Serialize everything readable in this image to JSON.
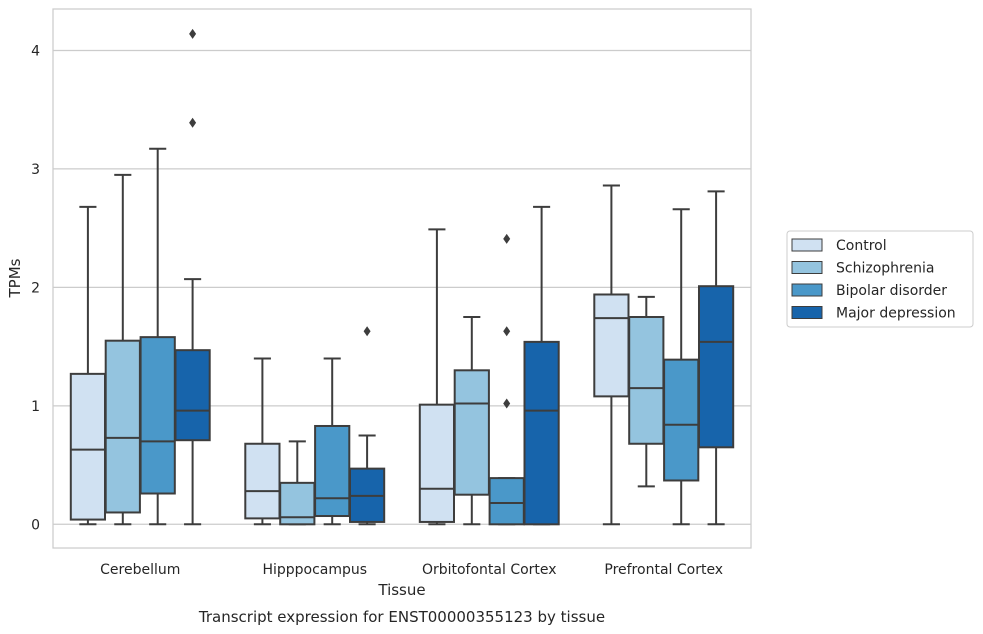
{
  "chart_data": {
    "type": "box",
    "xlabel": "Tissue",
    "ylabel": "TPMs",
    "caption": "Transcript expression for ENST00000355123 by tissue",
    "categories": [
      "Cerebellum",
      "Hipppocampus",
      "Orbitofontal Cortex",
      "Prefrontal Cortex"
    ],
    "ylim": [
      -0.2,
      4.35
    ],
    "yticks": [
      0,
      1,
      2,
      3,
      4
    ],
    "grid": "horizontal",
    "legend_position": "right",
    "series": [
      {
        "name": "Control",
        "color": "#d0e1f2",
        "boxes": [
          {
            "min": 0.0,
            "q1": 0.04,
            "median": 0.63,
            "q3": 1.27,
            "max": 2.68,
            "outliers": []
          },
          {
            "min": 0.0,
            "q1": 0.05,
            "median": 0.28,
            "q3": 0.68,
            "max": 1.4,
            "outliers": []
          },
          {
            "min": 0.0,
            "q1": 0.02,
            "median": 0.3,
            "q3": 1.01,
            "max": 2.49,
            "outliers": []
          },
          {
            "min": 0.0,
            "q1": 1.08,
            "median": 1.74,
            "q3": 1.94,
            "max": 2.86,
            "outliers": []
          }
        ]
      },
      {
        "name": "Schizophrenia",
        "color": "#94c4df",
        "boxes": [
          {
            "min": 0.0,
            "q1": 0.1,
            "median": 0.73,
            "q3": 1.55,
            "max": 2.95,
            "outliers": []
          },
          {
            "min": 0.0,
            "q1": 0.0,
            "median": 0.06,
            "q3": 0.35,
            "max": 0.7,
            "outliers": []
          },
          {
            "min": 0.0,
            "q1": 0.25,
            "median": 1.02,
            "q3": 1.3,
            "max": 1.75,
            "outliers": []
          },
          {
            "min": 0.32,
            "q1": 0.68,
            "median": 1.15,
            "q3": 1.75,
            "max": 1.92,
            "outliers": []
          }
        ]
      },
      {
        "name": "Bipolar disorder",
        "color": "#4a98c9",
        "boxes": [
          {
            "min": 0.0,
            "q1": 0.26,
            "median": 0.7,
            "q3": 1.58,
            "max": 3.17,
            "outliers": []
          },
          {
            "min": 0.0,
            "q1": 0.07,
            "median": 0.22,
            "q3": 0.83,
            "max": 1.4,
            "outliers": []
          },
          {
            "min": 0.0,
            "q1": 0.0,
            "median": 0.18,
            "q3": 0.39,
            "max": 0.39,
            "outliers": [
              1.02,
              1.63,
              2.41
            ]
          },
          {
            "min": 0.0,
            "q1": 0.37,
            "median": 0.84,
            "q3": 1.39,
            "max": 2.66,
            "outliers": []
          }
        ]
      },
      {
        "name": "Major depression",
        "color": "#1764ab",
        "boxes": [
          {
            "min": 0.0,
            "q1": 0.71,
            "median": 0.96,
            "q3": 1.47,
            "max": 2.07,
            "outliers": [
              3.39,
              4.14
            ]
          },
          {
            "min": 0.0,
            "q1": 0.02,
            "median": 0.24,
            "q3": 0.47,
            "max": 0.75,
            "outliers": [
              1.63
            ]
          },
          {
            "min": 0.0,
            "q1": 0.0,
            "median": 0.96,
            "q3": 1.54,
            "max": 2.68,
            "outliers": []
          },
          {
            "min": 0.0,
            "q1": 0.65,
            "median": 1.54,
            "q3": 2.01,
            "max": 2.81,
            "outliers": []
          }
        ]
      }
    ]
  }
}
